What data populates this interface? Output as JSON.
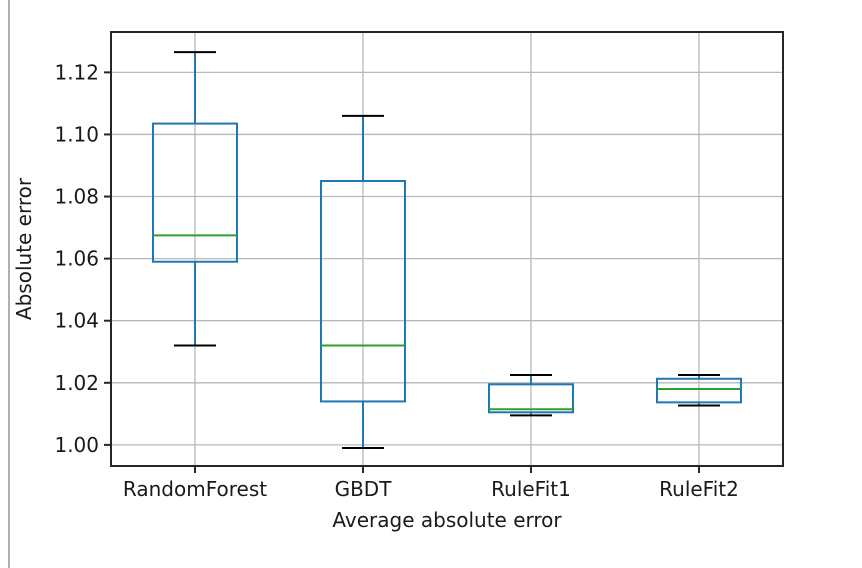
{
  "chart_data": {
    "type": "boxplot",
    "title": "",
    "xlabel": "Average absolute error",
    "ylabel": "Absolute error",
    "categories": [
      "RandomForest",
      "GBDT",
      "RuleFit1",
      "RuleFit2"
    ],
    "series": [
      {
        "name": "RandomForest",
        "whislo": 1.032,
        "q1": 1.059,
        "med": 1.0675,
        "q3": 1.1035,
        "whishi": 1.1265
      },
      {
        "name": "GBDT",
        "whislo": 0.999,
        "q1": 1.014,
        "med": 1.032,
        "q3": 1.085,
        "whishi": 1.106
      },
      {
        "name": "RuleFit1",
        "whislo": 1.0095,
        "q1": 1.0105,
        "med": 1.0115,
        "q3": 1.0195,
        "whishi": 1.0225
      },
      {
        "name": "RuleFit2",
        "whislo": 1.0127,
        "q1": 1.0137,
        "med": 1.018,
        "q3": 1.0213,
        "whishi": 1.0225
      }
    ],
    "y_ticks": [
      {
        "value": 1.0,
        "label": "1.00"
      },
      {
        "value": 1.02,
        "label": "1.02"
      },
      {
        "value": 1.04,
        "label": "1.04"
      },
      {
        "value": 1.06,
        "label": "1.06"
      },
      {
        "value": 1.08,
        "label": "1.08"
      },
      {
        "value": 1.1,
        "label": "1.10"
      },
      {
        "value": 1.12,
        "label": "1.12"
      }
    ],
    "ylim": [
      0.9932,
      1.133
    ],
    "grid": true,
    "legend": "none",
    "colors": {
      "box": "#1f77b4",
      "whisker": "#1f77b4",
      "median": "#2ca02c",
      "cap": "#000000",
      "grid": "#b8b8b8",
      "spine": "#262626",
      "text": "#1a1a1a"
    }
  }
}
